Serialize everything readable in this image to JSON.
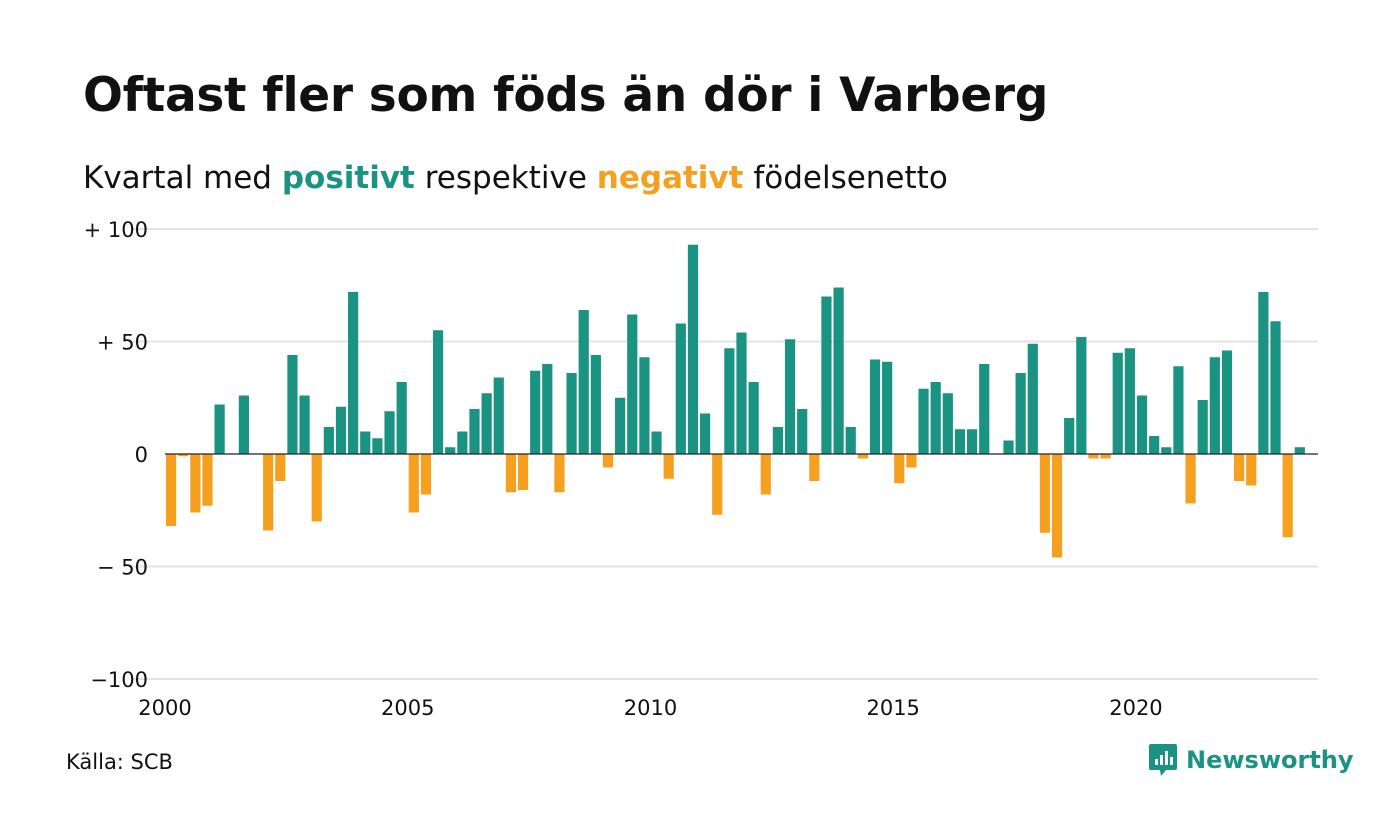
{
  "title": "Oftast fler som föds än dör i Varberg",
  "subtitle": {
    "prefix": "Kvartal med ",
    "positive": "positivt",
    "middle": " respektive ",
    "negative": "negativt",
    "suffix": " födelsenetto"
  },
  "source": "Källa: SCB",
  "brand": {
    "name": "Newsworthy",
    "icon": "newsworthy-logo-icon"
  },
  "colors": {
    "positive": "#1a9382",
    "negative": "#f5a01f",
    "grid": "#e3e3e3",
    "text": "#111111"
  },
  "chart_data": {
    "type": "bar",
    "title": "Oftast fler som föds än dör i Varberg",
    "xlabel": "",
    "ylabel": "",
    "ylim": [
      -100,
      100
    ],
    "xlim": [
      2000,
      2023.75
    ],
    "grid": true,
    "legend": "none (colors explained in subtitle)",
    "yticks": [
      {
        "value": 100,
        "label": "+ 100"
      },
      {
        "value": 50,
        "label": "+  50"
      },
      {
        "value": 0,
        "label": "0"
      },
      {
        "value": -50,
        "label": "− 50"
      },
      {
        "value": -100,
        "label": "−100"
      }
    ],
    "xticks": [
      {
        "value": 2000,
        "label": "2000"
      },
      {
        "value": 2005,
        "label": "2005"
      },
      {
        "value": 2010,
        "label": "2010"
      },
      {
        "value": 2015,
        "label": "2015"
      },
      {
        "value": 2020,
        "label": "2020"
      }
    ],
    "start_year": 2000,
    "quarters_per_year": 4,
    "values": [
      -32,
      -1,
      -26,
      -23,
      22,
      0,
      26,
      0,
      -34,
      -12,
      44,
      26,
      -30,
      12,
      21,
      72,
      10,
      7,
      19,
      32,
      -26,
      -18,
      55,
      3,
      10,
      20,
      27,
      34,
      -17,
      -16,
      37,
      40,
      -17,
      36,
      64,
      44,
      -6,
      25,
      62,
      43,
      10,
      -11,
      58,
      93,
      18,
      -27,
      47,
      54,
      32,
      -18,
      12,
      51,
      20,
      -12,
      70,
      74,
      12,
      -2,
      42,
      41,
      -13,
      -6,
      29,
      32,
      27,
      11,
      11,
      40,
      0,
      6,
      36,
      49,
      -35,
      -46,
      16,
      52,
      -2,
      -2,
      45,
      47,
      26,
      8,
      3,
      39,
      -22,
      24,
      43,
      46,
      -12,
      -14,
      72,
      59,
      -37,
      3
    ]
  }
}
